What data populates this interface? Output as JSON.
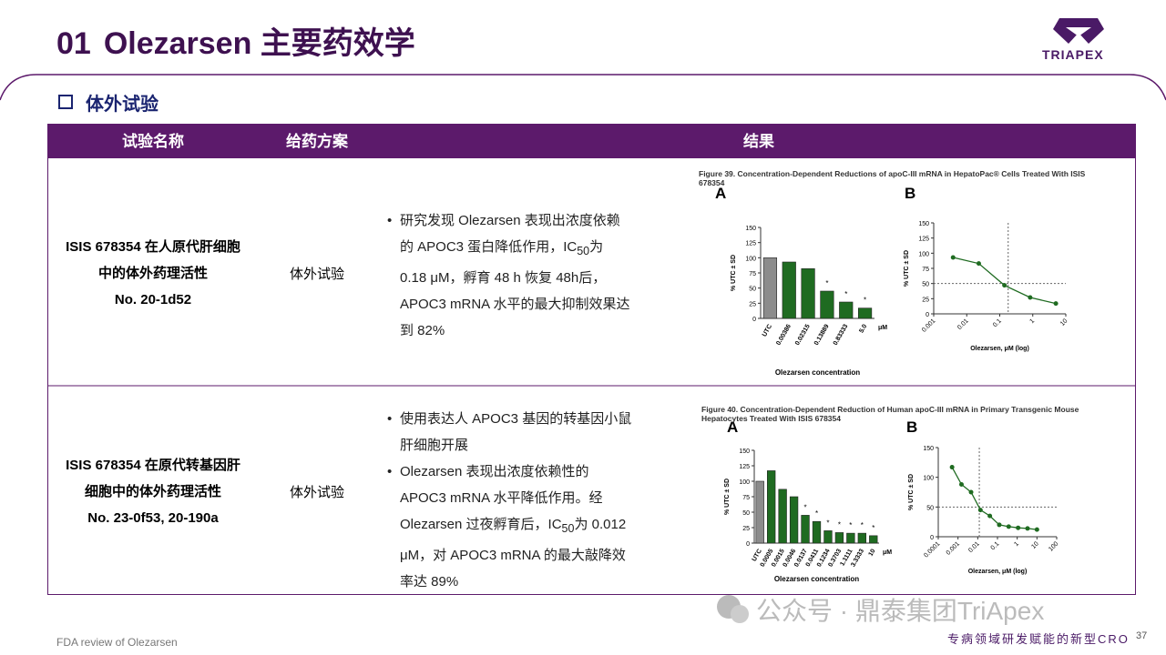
{
  "header": {
    "number": "01",
    "title": "Olezarsen 主要药效学",
    "logo": "TRIAPEX"
  },
  "section": "体外试验",
  "table": {
    "columns": [
      "试验名称",
      "给药方案",
      "结果"
    ],
    "rows": [
      {
        "name": [
          "ISIS 678354 在人原代肝细胞",
          "中的体外药理活性",
          "No. 20-1d52"
        ],
        "regimen": "体外试验",
        "bullets": [
          [
            "研究发现 Olezarsen 表现出浓度依赖的 APOC3 蛋白降低作用，IC",
            "50",
            "为 0.18 μM，孵育 48 h 恢复 48h后，APOC3 mRNA 水平的最大抑制效果达到 82%"
          ]
        ],
        "figure": {
          "caption": "Figure 39. Concentration-Dependent Reductions of apoC-III mRNA in HepatoPac® Cells Treated With ISIS 678354",
          "A": {
            "type": "bar",
            "label": "A",
            "ylabel": "% UTC ± SD",
            "xlabel": "Olezarsen concentration",
            "unit": "μM",
            "categories": [
              "UTC",
              "0.00386",
              "0.02315",
              "0.13889",
              "0.83333",
              "5.0"
            ],
            "values": [
              100,
              93,
              82,
              45,
              27,
              17
            ],
            "colors": [
              "#8c8c8c",
              "#1f6b21",
              "#1f6b21",
              "#1f6b21",
              "#1f6b21",
              "#1f6b21"
            ],
            "significance": [
              null,
              null,
              null,
              "*",
              "*",
              "*"
            ],
            "ylim": [
              0,
              150
            ],
            "yticks": [
              0,
              25,
              50,
              75,
              100,
              125,
              150
            ]
          },
          "B": {
            "type": "line",
            "label": "B",
            "xlabel": "Olezarsen, μM (log)",
            "ylabel": "% UTC ± SD",
            "color": "#1f6b21",
            "x": [
              0.00386,
              0.02315,
              0.13889,
              0.83333,
              5.0
            ],
            "values": [
              93,
              83,
              47,
              27,
              17
            ],
            "ref_x": 0.18,
            "ref_y": 50,
            "xlim": [
              0.001,
              10
            ],
            "xticks": [
              0.001,
              0.01,
              0.1,
              1,
              10
            ],
            "ylim": [
              0,
              150
            ],
            "yticks": [
              0,
              25,
              50,
              75,
              100,
              125,
              150
            ],
            "log_x": true
          }
        }
      },
      {
        "name": [
          "ISIS 678354 在原代转基因肝",
          "细胞中的体外药理活性",
          "No. 23-0f53, 20-190a"
        ],
        "regimen": "体外试验",
        "bullets": [
          [
            "使用表达人 APOC3 基因的转基因小鼠肝细胞开展"
          ],
          [
            "Olezarsen 表现出浓度依赖性的 APOC3 mRNA 水平降低作用。经 Olezarsen 过夜孵育后，IC",
            "50",
            "为 0.012 μM，对 APOC3 mRNA 的最大敲降效率达 89%"
          ]
        ],
        "figure": {
          "caption": "Figure 40. Concentration-Dependent Reduction of Human apoC-III mRNA in Primary Transgenic Mouse Hepatocytes Treated With ISIS 678354",
          "A": {
            "type": "bar",
            "label": "A",
            "ylabel": "% UTC ± SD",
            "xlabel": "Olezarsen concentration",
            "unit": "μM",
            "categories": [
              "UTC",
              "0.0005",
              "0.0015",
              "0.0046",
              "0.0137",
              "0.0411",
              "0.1234",
              "0.3703",
              "1.1111",
              "3.3333",
              "10"
            ],
            "values": [
              100,
              117,
              87,
              75,
              45,
              35,
              20,
              17,
              16,
              16,
              12
            ],
            "colors": [
              "#8c8c8c",
              "#1f6b21",
              "#1f6b21",
              "#1f6b21",
              "#1f6b21",
              "#1f6b21",
              "#1f6b21",
              "#1f6b21",
              "#1f6b21",
              "#1f6b21",
              "#1f6b21"
            ],
            "significance": [
              null,
              null,
              null,
              null,
              "*",
              "*",
              "*",
              "*",
              "*",
              "*",
              "*"
            ],
            "ylim": [
              0,
              150
            ],
            "yticks": [
              0,
              25,
              50,
              75,
              100,
              125,
              150
            ]
          },
          "B": {
            "type": "line",
            "label": "B",
            "xlabel": "Olezarsen, μM (log)",
            "ylabel": "% UTC ± SD",
            "color": "#1f6b21",
            "x": [
              0.0005,
              0.0015,
              0.0046,
              0.0137,
              0.0411,
              0.1234,
              0.3703,
              1.1111,
              3.3333,
              10
            ],
            "values": [
              117,
              88,
              75,
              45,
              35,
              20,
              17,
              15,
              14,
              12
            ],
            "ref_x": 0.012,
            "ref_y": 50,
            "xlim": [
              0.0001,
              100
            ],
            "xticks": [
              0.0001,
              0.001,
              0.01,
              0.1,
              1,
              10,
              100
            ],
            "ylim": [
              0,
              150
            ],
            "yticks": [
              0,
              50,
              100,
              150
            ],
            "log_x": true
          }
        }
      }
    ]
  },
  "footer": {
    "source": "FDA review of Olezarsen",
    "watermark": "公众号 · 鼎泰集团TriApex",
    "tagline": "专病领域研发赋能的新型CRO",
    "page": "37"
  }
}
